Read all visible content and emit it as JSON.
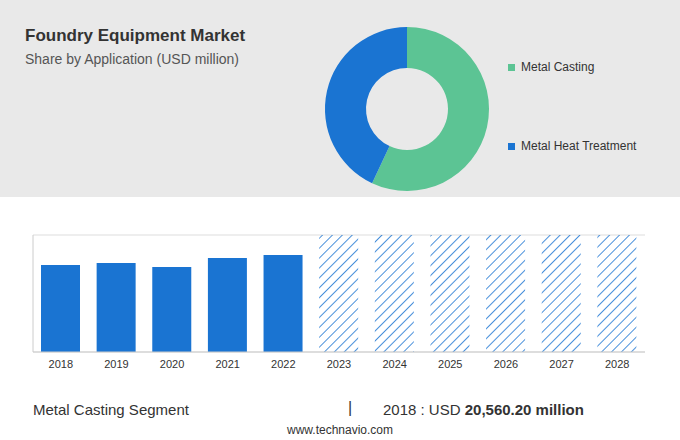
{
  "title": "Foundry Equipment Market",
  "subtitle": "Share by Application (USD million)",
  "chart_data": [
    {
      "type": "pie",
      "categories": [
        "Metal Casting",
        "Metal Heat Treatment"
      ],
      "values": [
        57,
        43
      ],
      "colors": [
        "#5cc494",
        "#1a74d2"
      ],
      "legend": "right"
    },
    {
      "type": "bar",
      "categories": [
        "2018",
        "2019",
        "2020",
        "2021",
        "2022",
        "2023",
        "2024",
        "2025",
        "2026",
        "2027",
        "2028"
      ],
      "series": [
        {
          "color": "#1a74d2",
          "values": [
            20560.2,
            21030,
            20090,
            22200,
            22920,
            null,
            null,
            null,
            null,
            null,
            null
          ]
        },
        {
          "color": "#1a74d2",
          "line_style": "hatched",
          "values": [
            null,
            null,
            null,
            null,
            null,
            27650,
            27650,
            27650,
            27650,
            27650,
            27650
          ]
        }
      ],
      "stacked": true,
      "ylim": [
        0,
        27650
      ],
      "yticks": [
        0,
        5000,
        10000,
        15000,
        20000,
        25000
      ],
      "grid": true,
      "tick_labels": "x"
    }
  ],
  "footer": {
    "segment": "Metal Casting Segment",
    "separator": "|",
    "label": "2018 : USD",
    "value": "20,560.20 million"
  },
  "source": "www.technavio.com"
}
